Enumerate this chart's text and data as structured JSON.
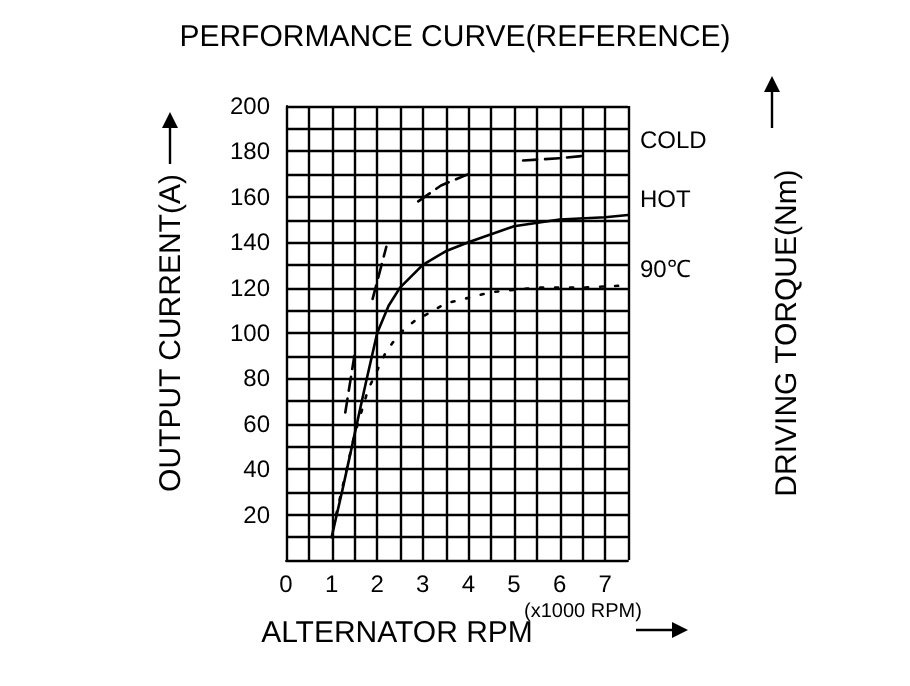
{
  "chart_data": {
    "type": "line",
    "title": "PERFORMANCE CURVE(REFERENCE)",
    "xlabel": "ALTERNATOR RPM",
    "ylabel": "OUTPUT CURRENT(A)",
    "y2label": "DRIVING TORQUE(Nm)",
    "annotations": [
      "(x1000 RPM)"
    ],
    "xlim": [
      0,
      7.5
    ],
    "xticks": [
      0,
      {
        "value": 0.5,
        "label": null
      },
      1,
      {
        "value": 1.5,
        "label": null
      },
      2,
      {
        "value": 2.5,
        "label": null
      },
      3,
      {
        "value": 3.5,
        "label": null
      },
      4,
      {
        "value": 4.5,
        "label": null
      },
      5,
      {
        "value": 5.5,
        "label": null
      },
      6,
      {
        "value": 6.5,
        "label": null
      },
      7,
      {
        "value": 7.5,
        "label": null
      }
    ],
    "ylim": [
      0,
      200
    ],
    "yticks": [
      {
        "value": 0,
        "label": null
      },
      {
        "value": 10,
        "label": null
      },
      20,
      {
        "value": 30,
        "label": null
      },
      40,
      {
        "value": 50,
        "label": null
      },
      60,
      {
        "value": 70,
        "label": null
      },
      80,
      {
        "value": 90,
        "label": null
      },
      100,
      {
        "value": 110,
        "label": null
      },
      120,
      {
        "value": 130,
        "label": null
      },
      140,
      {
        "value": 150,
        "label": null
      },
      160,
      {
        "value": 170,
        "label": null
      },
      180,
      {
        "value": 190,
        "label": null
      },
      200
    ],
    "grid": true,
    "legend": false,
    "marker": "none",
    "series": [
      {
        "name": "COLD",
        "color": "#000000",
        "line_style": "dashed",
        "x": [
          1.3,
          1.5,
          1.7,
          1.9,
          2.2,
          2.5,
          2.9,
          3.4,
          4,
          4.6,
          5.2,
          6,
          6.5
        ],
        "values": [
          65,
          90,
          null,
          115,
          138,
          null,
          158,
          165,
          170,
          null,
          176,
          177,
          178
        ]
      },
      {
        "name": "HOT",
        "color": "#000000",
        "line_style": "solid",
        "x": [
          1,
          1.25,
          1.5,
          1.75,
          2,
          2.25,
          2.5,
          3,
          3.5,
          4,
          5,
          6,
          7,
          7.5
        ],
        "values": [
          10,
          32,
          55,
          78,
          100,
          112,
          120,
          130,
          136,
          140,
          147,
          150,
          151,
          152
        ]
      },
      {
        "name": "90℃",
        "color": "#000000",
        "line_style": "dotted",
        "x": [
          1.1,
          1.5,
          1.8,
          2.2,
          2.5,
          2.8,
          3.5,
          4.5,
          5.5,
          6.5,
          7.5
        ],
        "values": [
          20,
          55,
          75,
          92,
          100,
          105,
          113,
          118,
          120,
          120,
          121
        ]
      }
    ]
  }
}
